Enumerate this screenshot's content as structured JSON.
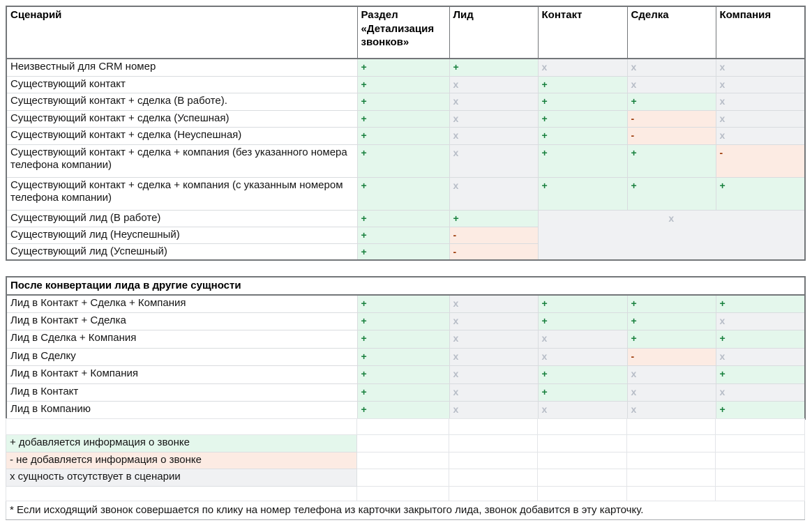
{
  "table1": {
    "columns": [
      "Сценарий",
      "Раздел «Детализация звонков»",
      "Лид",
      "Контакт",
      "Сделка",
      "Компания"
    ],
    "rows": [
      {
        "label": "Неизвестный для CRM номер",
        "cells": [
          "+",
          "+",
          "x",
          "x",
          "x"
        ]
      },
      {
        "label": "Существующий контакт",
        "cells": [
          "+",
          "x",
          "+",
          "x",
          "x"
        ]
      },
      {
        "label": "Существующий контакт + сделка (В работе).",
        "cells": [
          "+",
          "x",
          "+",
          "+",
          "x"
        ]
      },
      {
        "label": "Существующий контакт + сделка (Успешная)",
        "cells": [
          "+",
          "x",
          "+",
          "-",
          "x"
        ]
      },
      {
        "label": "Существующий контакт + сделка (Неуспешная)",
        "cells": [
          "+",
          "x",
          "+",
          "-",
          "x"
        ]
      },
      {
        "label": "Существующий контакт + сделка + компания (без указанного номера телефона компании)",
        "cells": [
          "+",
          "x",
          "+",
          "+",
          "-"
        ]
      },
      {
        "label": "Существующий контакт + сделка + компания (с указанным номером телефона компании)",
        "cells": [
          "+",
          "x",
          "+",
          "+",
          "+"
        ]
      },
      {
        "label": "Существующий лид (В работе)",
        "cells": [
          "+",
          "+"
        ]
      },
      {
        "label": "Существующий лид (Неуспешный)",
        "cells": [
          "+",
          "-"
        ]
      },
      {
        "label": "Существующий лид (Успешный)",
        "cells": [
          "+",
          "-"
        ]
      }
    ],
    "merged_symbol": "x"
  },
  "table2": {
    "title": "После конвертации лида в другие сущности",
    "rows": [
      {
        "label": "Лид в Контакт + Сделка + Компания",
        "cells": [
          "+",
          "x",
          "+",
          "+",
          "+"
        ]
      },
      {
        "label": "Лид в Контакт + Сделка",
        "cells": [
          "+",
          "x",
          "+",
          "+",
          "x"
        ]
      },
      {
        "label": "Лид в Сделка + Компания",
        "cells": [
          "+",
          "x",
          "x",
          "+",
          "+"
        ]
      },
      {
        "label": "Лид в Сделку",
        "cells": [
          "+",
          "x",
          "x",
          "-",
          "x"
        ]
      },
      {
        "label": "Лид в Контакт + Компания",
        "cells": [
          "+",
          "x",
          "+",
          "x",
          "+"
        ]
      },
      {
        "label": "Лид в Контакт",
        "cells": [
          "+",
          "x",
          "+",
          "x",
          "x"
        ]
      },
      {
        "label": "Лид в Компанию",
        "cells": [
          "+",
          "x",
          "x",
          "x",
          "+"
        ]
      }
    ]
  },
  "legend": [
    {
      "type": "plus",
      "text": "+ добавляется информация о звонке"
    },
    {
      "type": "minus",
      "text": "- не добавляется информация о звонке"
    },
    {
      "type": "absent",
      "text": "х сущность отсутствует в сценарии"
    }
  ],
  "footnote": "* Если исходящий звонок совершается по клику на номер телефона из карточки закрытого лида, звонок добавится в эту карточку.",
  "colors": {
    "plus_bg": "#e4f7ec",
    "minus_bg": "#fcebe3",
    "absent_bg": "#f0f1f3",
    "plus_text": "#17803d",
    "minus_text": "#993300",
    "absent_text": "#b7bdc7",
    "border_dark": "#737679",
    "border_light": "#d9dcdf"
  }
}
